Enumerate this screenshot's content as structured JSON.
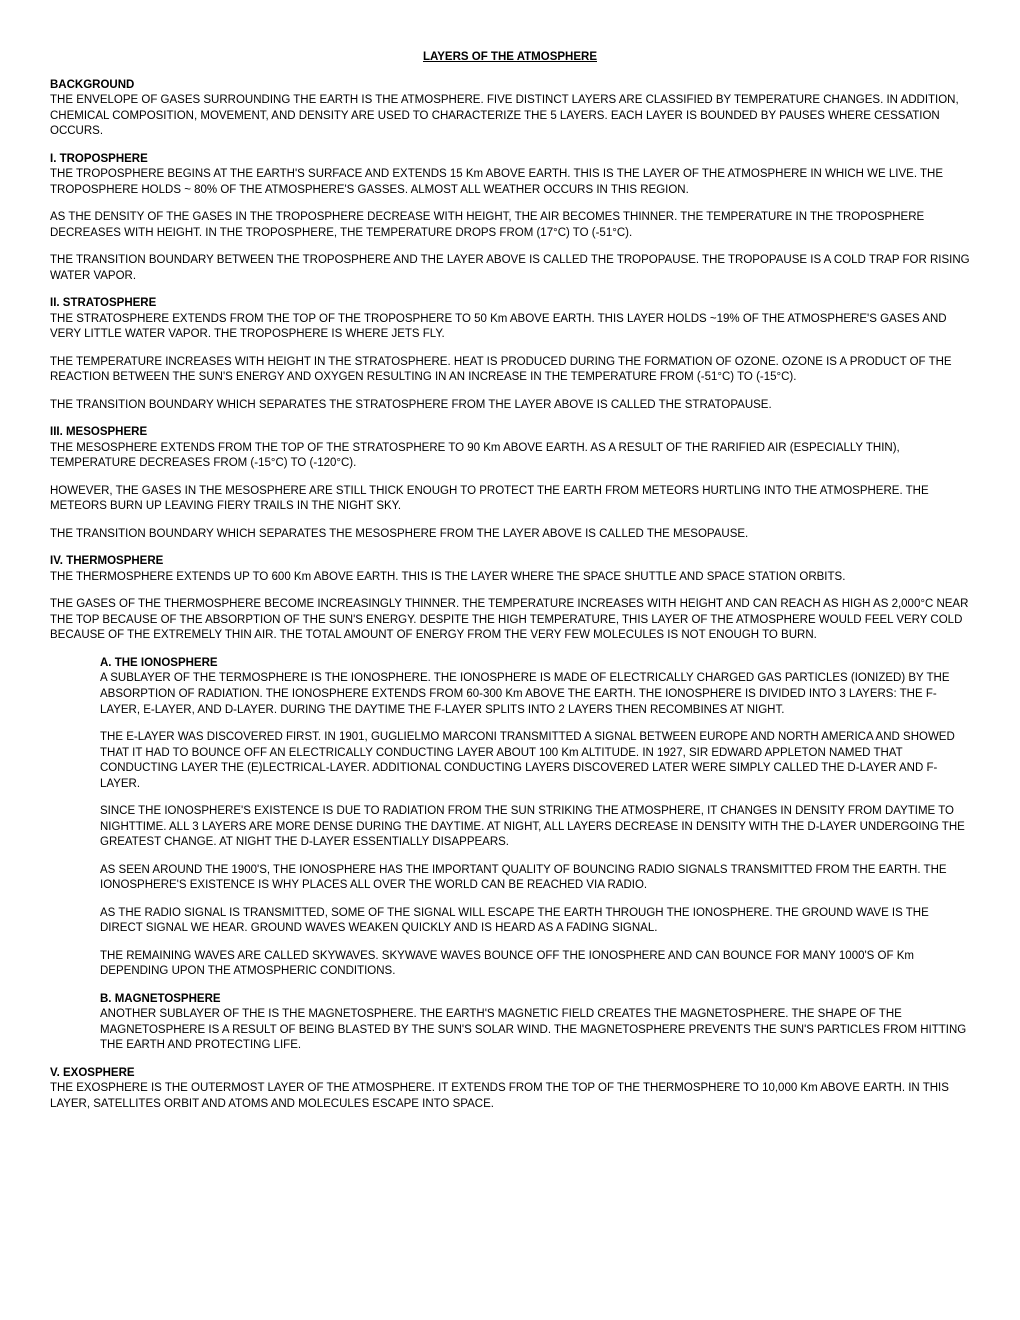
{
  "title": "LAYERS OF THE ATMOSPHERE",
  "background": {
    "heading": "BACKGROUND",
    "p1": "THE ENVELOPE OF GASES SURROUNDING THE EARTH IS THE ATMOSPHERE.  FIVE DISTINCT LAYERS ARE CLASSIFIED BY TEMPERATURE CHANGES.  IN ADDITION, CHEMICAL COMPOSITION, MOVEMENT, AND DENSITY ARE USED TO CHARACTERIZE THE 5 LAYERS.  EACH LAYER IS BOUNDED BY PAUSES WHERE CESSATION OCCURS."
  },
  "troposphere": {
    "heading": "I.  TROPOSPHERE",
    "p1": "THE TROPOSPHERE BEGINS AT THE EARTH'S SURFACE AND EXTENDS 15 Km ABOVE EARTH.  THIS IS THE LAYER OF THE ATMOSPHERE IN WHICH WE LIVE.  THE TROPOSPHERE HOLDS ~ 80% OF THE ATMOSPHERE'S GASSES.  ALMOST ALL WEATHER OCCURS IN THIS REGION.",
    "p2": "AS THE DENSITY OF THE GASES IN THE TROPOSPHERE DECREASE WITH HEIGHT, THE AIR BECOMES THINNER.  THE TEMPERATURE IN THE TROPOSPHERE DECREASES WITH HEIGHT.  IN THE TROPOSPHERE, THE TEMPERATURE DROPS FROM (17°C) TO (-51°C).",
    "p3": "THE TRANSITION BOUNDARY BETWEEN THE TROPOSPHERE AND THE LAYER ABOVE IS CALLED THE TROPOPAUSE.  THE TROPOPAUSE IS A COLD TRAP FOR RISING WATER VAPOR."
  },
  "stratosphere": {
    "heading": "II.  STRATOSPHERE",
    "p1": "THE STRATOSPHERE EXTENDS FROM THE TOP OF THE TROPOSPHERE TO 50 Km ABOVE EARTH.  THIS LAYER HOLDS ~19% OF THE ATMOSPHERE'S GASES AND VERY LITTLE WATER VAPOR.  THE TROPOSPHERE IS WHERE JETS FLY.",
    "p2": "THE TEMPERATURE INCREASES WITH HEIGHT IN THE STRATOSPHERE.  HEAT IS PRODUCED DURING THE FORMATION OF OZONE.  OZONE IS A PRODUCT OF THE REACTION BETWEEN THE SUN'S ENERGY AND OXYGEN RESULTING IN AN INCREASE IN THE TEMPERATURE FROM (-51°C) TO (-15°C).",
    "p3": "THE TRANSITION BOUNDARY WHICH SEPARATES THE STRATOSPHERE FROM THE LAYER ABOVE IS CALLED THE STRATOPAUSE."
  },
  "mesosphere": {
    "heading": "III.  MESOSPHERE",
    "p1": "THE MESOSPHERE EXTENDS FROM THE TOP OF THE STRATOSPHERE TO 90 Km ABOVE EARTH.  AS A RESULT OF THE RARIFIED AIR (ESPECIALLY THIN), TEMPERATURE DECREASES FROM (-15°C) TO (-120°C).",
    "p2": "HOWEVER, THE GASES IN THE MESOSPHERE ARE STILL THICK ENOUGH TO PROTECT THE EARTH FROM METEORS HURTLING INTO THE ATMOSPHERE.  THE METEORS BURN UP LEAVING FIERY TRAILS IN THE NIGHT SKY.",
    "p3": "THE TRANSITION BOUNDARY WHICH SEPARATES THE MESOSPHERE FROM THE LAYER ABOVE IS CALLED THE MESOPAUSE."
  },
  "thermosphere": {
    "heading": "IV.  THERMOSPHERE",
    "p1": "THE THERMOSPHERE EXTENDS UP TO 600 Km ABOVE EARTH. THIS IS THE LAYER WHERE THE SPACE SHUTTLE AND SPACE STATION ORBITS.",
    "p2": "THE GASES OF THE THERMOSPHERE BECOME INCREASINGLY THINNER.  THE TEMPERATURE INCREASES WITH HEIGHT AND CAN REACH AS HIGH AS 2,000°C NEAR THE TOP BECAUSE OF THE ABSORPTION OF THE SUN'S ENERGY.  DESPITE THE HIGH TEMPERATURE, THIS LAYER OF THE ATMOSPHERE WOULD FEEL VERY COLD BECAUSE OF THE EXTREMELY THIN AIR.  THE TOTAL AMOUNT OF ENERGY FROM THE VERY FEW MOLECULES IS NOT ENOUGH TO BURN.",
    "ionosphere": {
      "heading": "A.  THE IONOSPHERE",
      "p1": "A SUBLAYER OF THE TERMOSPHERE IS THE IONOSPHERE.  THE IONOSPHERE IS MADE OF ELECTRICALLY CHARGED GAS PARTICLES (IONIZED) BY THE ABSORPTION OF RADIATION.  THE IONOSPHERE EXTENDS FROM 60-300 Km ABOVE THE EARTH.  THE IONOSPHERE IS DIVIDED INTO 3 LAYERS:  THE F-LAYER, E-LAYER, AND D-LAYER.  DURING THE DAYTIME THE F-LAYER SPLITS INTO 2 LAYERS THEN RECOMBINES AT NIGHT.",
      "p2": "THE E-LAYER WAS DISCOVERED FIRST.  IN 1901, GUGLIELMO MARCONI TRANSMITTED A SIGNAL BETWEEN EUROPE AND NORTH AMERICA AND SHOWED THAT IT HAD TO BOUNCE OFF AN ELECTRICALLY CONDUCTING LAYER ABOUT 100 Km ALTITUDE.  IN 1927, SIR EDWARD APPLETON NAMED THAT CONDUCTING LAYER THE (E)LECTRICAL-LAYER.  ADDITIONAL CONDUCTING LAYERS DISCOVERED LATER WERE SIMPLY CALLED THE D-LAYER AND F-LAYER.",
      "p3": "SINCE THE IONOSPHERE'S EXISTENCE IS DUE TO RADIATION FROM THE SUN STRIKING THE ATMOSPHERE, IT CHANGES IN DENSITY FROM DAYTIME TO NIGHTTIME.  ALL 3 LAYERS ARE MORE DENSE DURING THE DAYTIME.  AT NIGHT, ALL LAYERS DECREASE IN DENSITY WITH THE D-LAYER UNDERGOING THE GREATEST CHANGE.  AT NIGHT THE D-LAYER ESSENTIALLY DISAPPEARS.",
      "p4": "AS SEEN AROUND THE 1900'S, THE IONOSPHERE HAS THE IMPORTANT QUALITY OF BOUNCING RADIO SIGNALS TRANSMITTED FROM THE EARTH.  THE IONOSPHERE'S EXISTENCE IS WHY PLACES ALL OVER THE WORLD CAN BE REACHED VIA RADIO.",
      "p5": "AS THE RADIO SIGNAL IS TRANSMITTED, SOME OF THE SIGNAL WILL ESCAPE THE EARTH THROUGH THE IONOSPHERE.  THE GROUND WAVE IS THE DIRECT SIGNAL WE HEAR.  GROUND WAVES WEAKEN QUICKLY AND IS HEARD AS A FADING SIGNAL.",
      "p6": "THE REMAINING WAVES ARE CALLED SKYWAVES.  SKYWAVE WAVES BOUNCE OFF THE IONOSPHERE AND CAN BOUNCE FOR MANY 1000'S OF Km DEPENDING UPON THE ATMOSPHERIC CONDITIONS."
    },
    "magnetosphere": {
      "heading": "B.  MAGNETOSPHERE",
      "p1": "ANOTHER SUBLAYER OF THE IS THE MAGNETOSPHERE.  THE EARTH'S MAGNETIC FIELD CREATES THE MAGNETOSPHERE.  THE SHAPE OF THE MAGNETOSPHERE IS A RESULT OF BEING BLASTED BY THE SUN'S SOLAR WIND.  THE MAGNETOSPHERE PREVENTS THE SUN'S PARTICLES FROM HITTING THE EARTH AND PROTECTING LIFE."
    }
  },
  "exosphere": {
    "heading": "V.  EXOSPHERE",
    "p1": "THE EXOSPHERE IS THE OUTERMOST LAYER OF THE ATMOSPHERE.  IT EXTENDS FROM THE TOP OF THE THERMOSPHERE TO 10,000 Km ABOVE EARTH.  IN THIS LAYER, SATELLITES ORBIT AND ATOMS AND MOLECULES ESCAPE INTO SPACE."
  }
}
